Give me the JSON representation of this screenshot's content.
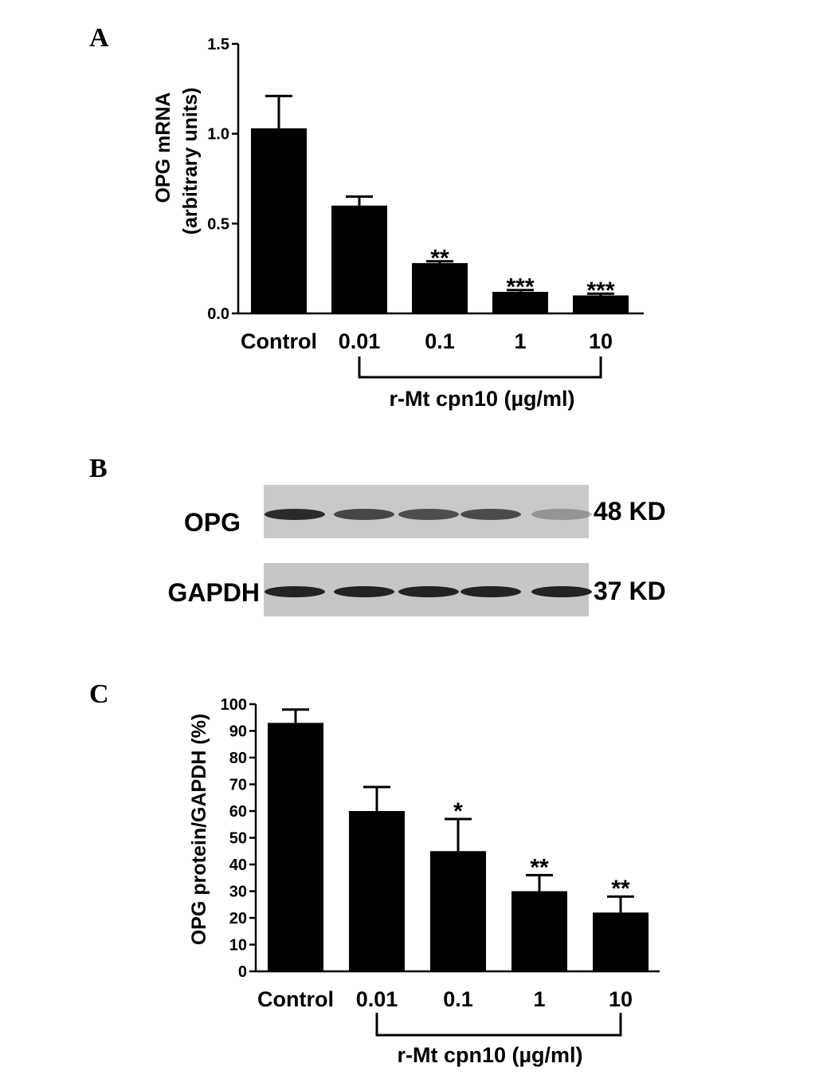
{
  "panels": {
    "a": "A",
    "b": "B",
    "c": "C"
  },
  "chart_data": [
    {
      "type": "bar",
      "panel": "A",
      "categories": [
        "Control",
        "0.01",
        "0.1",
        "1",
        "10"
      ],
      "values": [
        1.03,
        0.6,
        0.28,
        0.12,
        0.1
      ],
      "errors": [
        0.18,
        0.05,
        0.01,
        0.01,
        0.01
      ],
      "significance": [
        "",
        "",
        "**",
        "***",
        "***"
      ],
      "ylabel_line1": "OPG mRNA",
      "ylabel_line2": "(arbitrary units)",
      "xlabel": "r-Mt cpn10 (µg/ml)",
      "ylim": [
        0,
        1.5
      ],
      "yticks": [
        "0.0",
        "0.5",
        "1.0",
        "1.5"
      ]
    },
    {
      "type": "bar",
      "panel": "C",
      "categories": [
        "Control",
        "0.01",
        "0.1",
        "1",
        "10"
      ],
      "values": [
        93,
        60,
        45,
        30,
        22
      ],
      "errors": [
        5,
        9,
        12,
        6,
        6
      ],
      "significance": [
        "",
        "",
        "*",
        "**",
        "**"
      ],
      "ylabel": "OPG protein/GAPDH (%)",
      "xlabel": "r-Mt cpn10 (µg/ml)",
      "ylim": [
        0,
        100
      ],
      "yticks": [
        "0",
        "10",
        "20",
        "30",
        "40",
        "50",
        "60",
        "70",
        "80",
        "90",
        "100"
      ]
    }
  ],
  "blot": {
    "rows": [
      {
        "label": "OPG",
        "size": "48 KD",
        "intensities": [
          0.9,
          0.75,
          0.7,
          0.72,
          0.3
        ]
      },
      {
        "label": "GAPDH",
        "size": "37 KD",
        "intensities": [
          0.95,
          0.95,
          0.95,
          0.95,
          0.95
        ]
      }
    ]
  }
}
